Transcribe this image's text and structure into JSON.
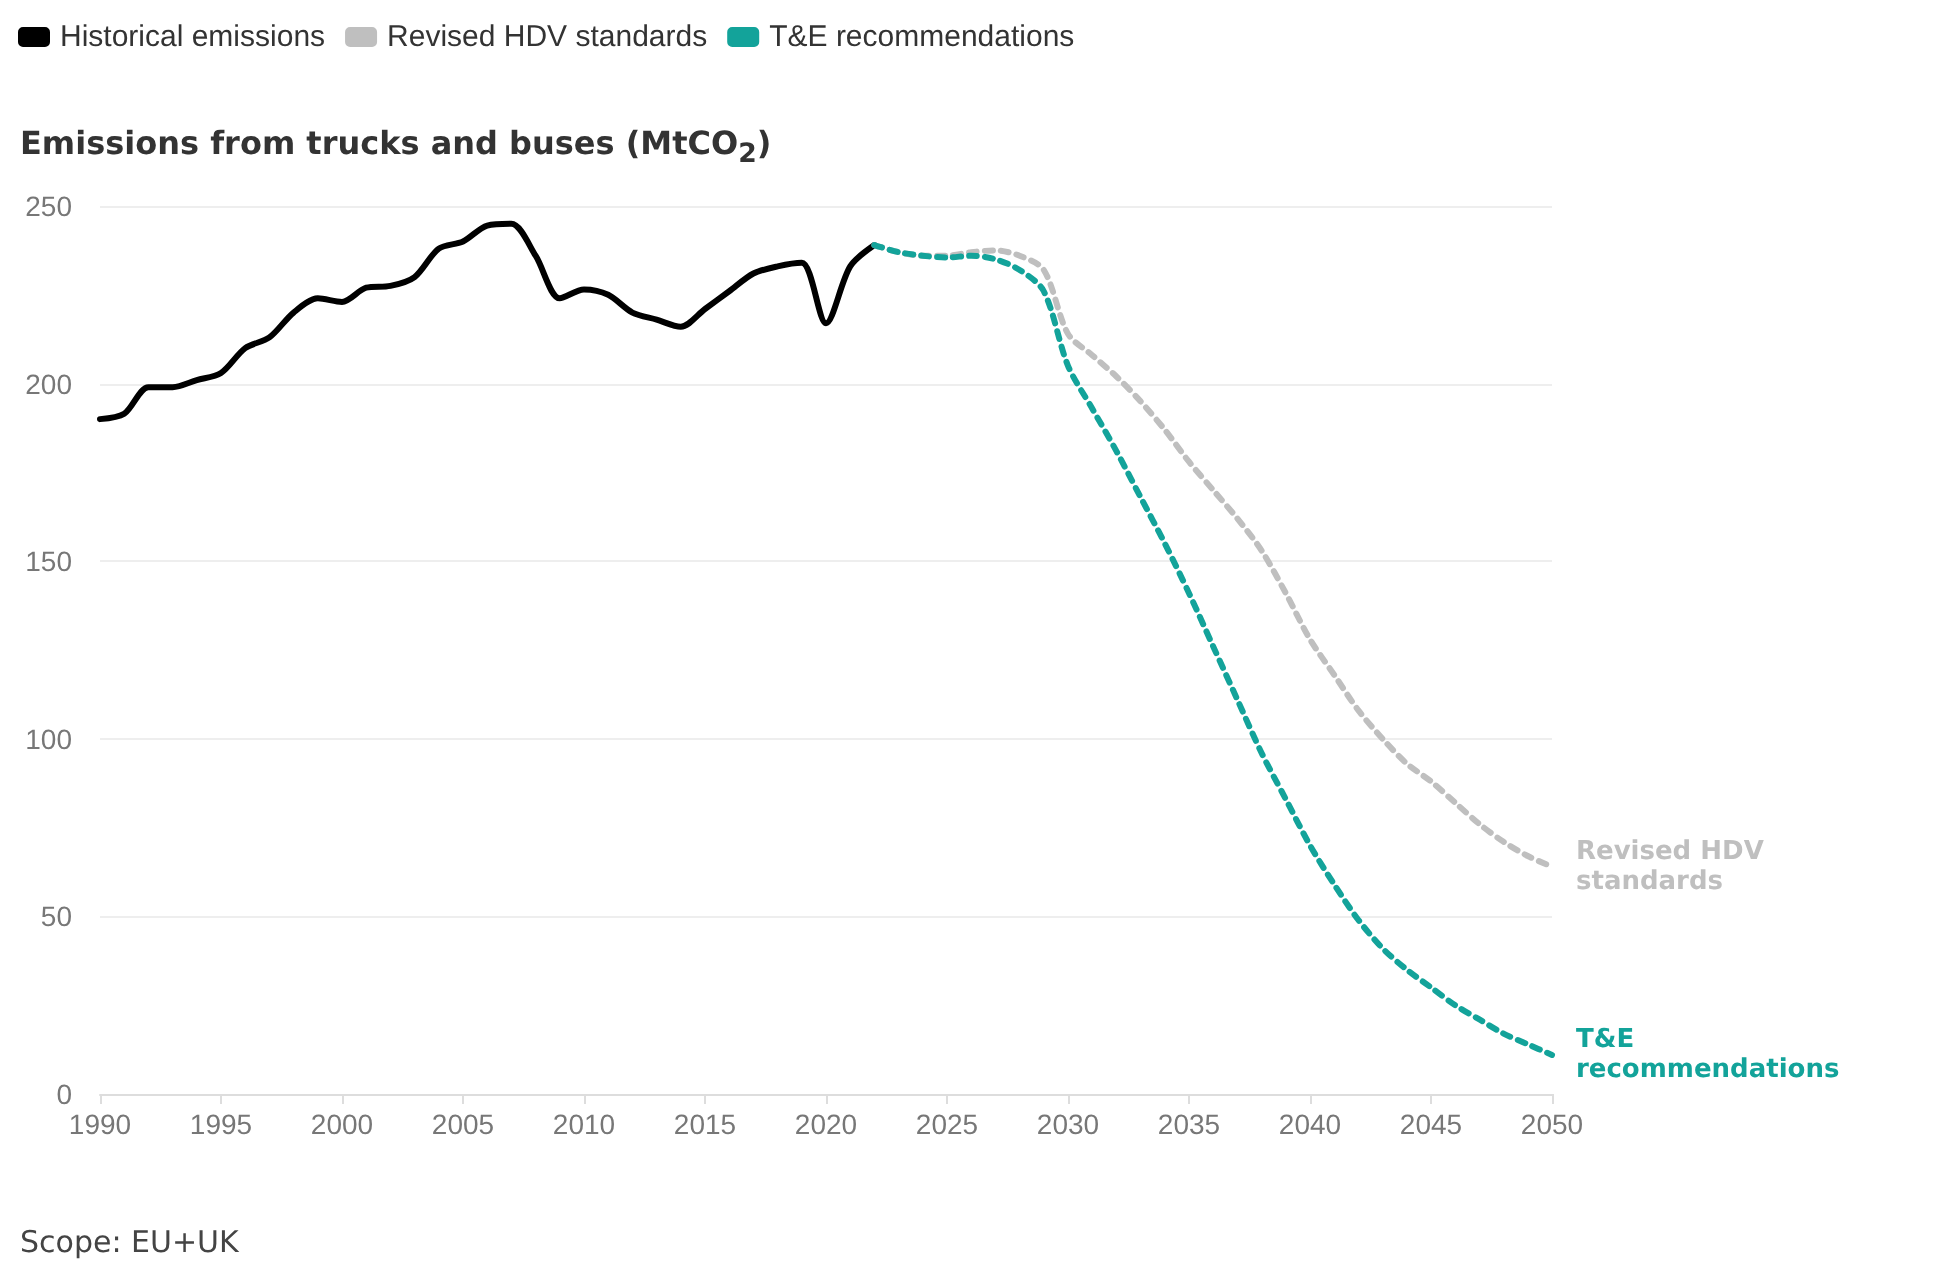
{
  "chart_data": {
    "type": "line",
    "title": "Emissions from trucks and buses (MtCO$_{2}$)",
    "annotations": [
      "Scope: EU+UK"
    ],
    "xlim": [
      1990,
      2050
    ],
    "xticks": [
      1990,
      1995,
      2000,
      2005,
      2010,
      2015,
      2020,
      2025,
      2030,
      2035,
      2040,
      2045,
      2050
    ],
    "ylim": [
      0,
      250
    ],
    "yticks": [
      0,
      50,
      100,
      150,
      200,
      250
    ],
    "grid": "y",
    "legend": "top left",
    "marker": "none",
    "series": [
      {
        "name": "Historical emissions",
        "color": "#000000",
        "line_style": "solid",
        "x": [
          1990,
          1991,
          1992,
          1993,
          1994,
          1995,
          1996,
          1997,
          1998,
          1999,
          2000,
          2001,
          2002,
          2003,
          2004,
          2005,
          2006,
          2007,
          2008,
          2009,
          2010,
          2011,
          2012,
          2013,
          2014,
          2015,
          2016,
          2017,
          2018,
          2019,
          2020,
          2021,
          2022
        ],
        "values": [
          190,
          191.5,
          199,
          199,
          201,
          203,
          210,
          213,
          220,
          224,
          223,
          227,
          227.5,
          230,
          238,
          240,
          244.5,
          245,
          236,
          224,
          226.5,
          225,
          220,
          218,
          216,
          221,
          226,
          231,
          233,
          234,
          217,
          233,
          239
        ]
      },
      {
        "name": "Revised HDV standards",
        "color": "#bfbfbf",
        "line_style": "dashed",
        "x": [
          2022,
          2023,
          2024,
          2025,
          2026,
          2027,
          2028,
          2029,
          2030,
          2031,
          2032,
          2033,
          2034,
          2035,
          2036,
          2037,
          2038,
          2039,
          2040,
          2041,
          2042,
          2043,
          2044,
          2045,
          2046,
          2047,
          2048,
          2049,
          2050
        ],
        "values": [
          239,
          237,
          236,
          236,
          237,
          237.5,
          236,
          232,
          214,
          208,
          202,
          195,
          187,
          178,
          170,
          162,
          153,
          141,
          128,
          118,
          108,
          100,
          93,
          88,
          82,
          76,
          71,
          67,
          64
        ]
      },
      {
        "name": "T&E recommendations",
        "color": "#13a39a",
        "line_style": "dashed",
        "x": [
          2022,
          2023,
          2024,
          2025,
          2026,
          2027,
          2028,
          2029,
          2030,
          2031,
          2032,
          2033,
          2034,
          2035,
          2036,
          2037,
          2038,
          2039,
          2040,
          2041,
          2042,
          2043,
          2044,
          2045,
          2046,
          2047,
          2048,
          2049,
          2050
        ],
        "values": [
          239,
          237,
          236,
          235.5,
          236,
          235,
          232,
          226,
          205,
          193,
          181,
          168,
          155,
          141,
          126,
          111,
          96,
          83,
          70,
          59,
          49,
          41,
          35,
          30,
          25,
          21,
          17,
          14,
          11
        ]
      }
    ]
  }
}
